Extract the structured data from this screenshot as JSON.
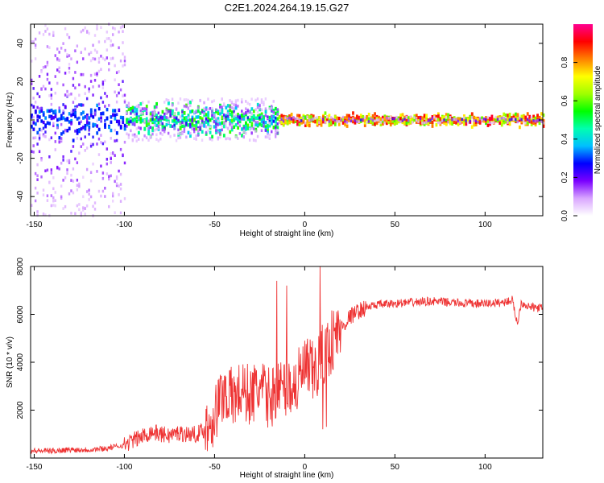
{
  "title": "C2E1.2024.264.19.15.G27",
  "chart_data": [
    {
      "type": "heatmap",
      "title": "C2E1.2024.264.19.15.G27",
      "xlabel": "Height of straight line (km)",
      "ylabel": "Frequency (Hz)",
      "xlim": [
        -152,
        132
      ],
      "ylim": [
        -50,
        50
      ],
      "x_ticks": [
        -150,
        -100,
        -50,
        0,
        50,
        100
      ],
      "x_tick_labels": [
        "-150",
        "-100",
        "-50",
        "0",
        "50",
        "100"
      ],
      "y_ticks": [
        -40,
        -20,
        0,
        20,
        40
      ],
      "y_tick_labels": [
        "-40",
        "-20",
        "0",
        "20",
        "40"
      ],
      "colorbar": {
        "label": "Normalized spectral amplitude",
        "range": [
          0,
          1
        ],
        "ticks": [
          0.0,
          0.2,
          0.4,
          0.6,
          0.8
        ],
        "tick_labels": [
          "0.0",
          "0.2",
          "0.4",
          "0.6",
          "0.8"
        ],
        "colors": [
          "#ffffff",
          "#d9a6ff",
          "#7a00ff",
          "#0000ff",
          "#00bfff",
          "#00ffb0",
          "#00ff00",
          "#a0ff00",
          "#ffff00",
          "#ff8000",
          "#ff0000",
          "#ff0090"
        ]
      },
      "ridge": {
        "description_free": true,
        "center_hz": 0,
        "regions": [
          {
            "x_from": -152,
            "x_to": -100,
            "spread_hz": 50,
            "peak": 0.35
          },
          {
            "x_from": -100,
            "x_to": -15,
            "spread_hz": 10,
            "peak": 0.6
          },
          {
            "x_from": -15,
            "x_to": 132,
            "spread_hz": 1.5,
            "peak": 0.95
          }
        ]
      }
    },
    {
      "type": "line",
      "xlabel": "Height of straight line (km)",
      "ylabel": "SNR (10 * v/v)",
      "xlim": [
        -152,
        132
      ],
      "ylim": [
        0,
        8000
      ],
      "x_ticks": [
        -150,
        -100,
        -50,
        0,
        50,
        100
      ],
      "x_tick_labels": [
        "-150",
        "-100",
        "-50",
        "0",
        "50",
        "100"
      ],
      "y_ticks": [
        2000,
        4000,
        6000,
        8000
      ],
      "y_tick_labels": [
        "2000",
        "4000",
        "6000",
        "8000"
      ],
      "line_color": "#ee3333",
      "series": [
        {
          "name": "SNR",
          "x": [
            -152,
            -140,
            -130,
            -120,
            -110,
            -100,
            -95,
            -90,
            -85,
            -80,
            -75,
            -70,
            -65,
            -60,
            -55,
            -50,
            -45,
            -40,
            -35,
            -30,
            -25,
            -20,
            -15,
            -10,
            -5,
            0,
            5,
            10,
            15,
            20,
            25,
            30,
            35,
            40,
            50,
            60,
            70,
            80,
            90,
            100,
            110,
            115,
            118,
            120,
            125,
            132
          ],
          "values": [
            300,
            300,
            350,
            350,
            400,
            550,
            750,
            900,
            1100,
            1000,
            950,
            1050,
            1000,
            1000,
            1200,
            1800,
            2800,
            2500,
            2800,
            2600,
            2900,
            2500,
            2800,
            3000,
            3000,
            3700,
            3500,
            4200,
            4900,
            5400,
            5900,
            6150,
            6300,
            6400,
            6450,
            6500,
            6550,
            6500,
            6450,
            6450,
            6500,
            6600,
            5600,
            6500,
            6300,
            6250
          ]
        }
      ],
      "noise_amplitude": [
        {
          "x_from": -152,
          "x_to": -100,
          "amp": 120
        },
        {
          "x_from": -100,
          "x_to": -55,
          "amp": 350
        },
        {
          "x_from": -55,
          "x_to": -5,
          "amp": 1300
        },
        {
          "x_from": -5,
          "x_to": 20,
          "amp": 1400
        },
        {
          "x_from": 20,
          "x_to": 35,
          "amp": 350
        },
        {
          "x_from": 35,
          "x_to": 132,
          "amp": 180
        }
      ],
      "spikes": [
        {
          "x": -15.5,
          "value": 7400
        },
        {
          "x": -10,
          "value": 7200
        },
        {
          "x": 8.5,
          "value": 8000
        },
        {
          "x": 10,
          "value": 1200
        },
        {
          "x": 12,
          "value": 1300
        }
      ]
    }
  ]
}
